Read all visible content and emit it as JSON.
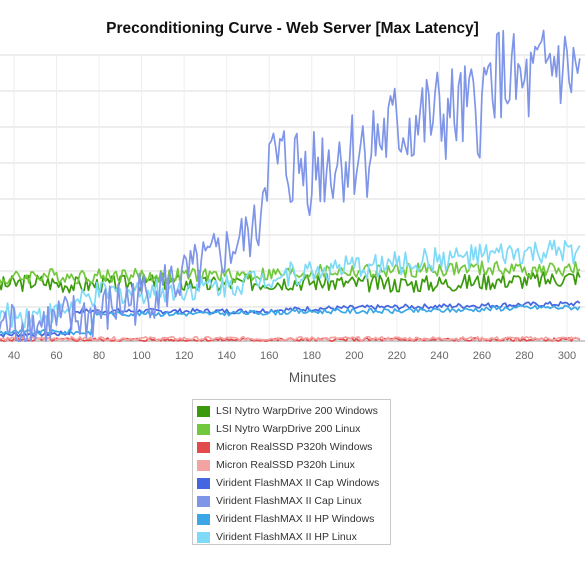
{
  "chart_data": {
    "type": "line",
    "title": "Preconditioning Curve - Web Server [Max Latency]",
    "xlabel": "Minutes",
    "ylabel": "",
    "x_ticks": [
      40,
      60,
      80,
      100,
      120,
      140,
      160,
      180,
      200,
      220,
      240,
      260,
      280,
      300
    ],
    "xlim": [
      30,
      306
    ],
    "grid": true,
    "legend_position": "bottom-center",
    "series": [
      {
        "name": "LSI Nytro WarpDrive 200 Windows",
        "color": "#3a9a0c",
        "points": [
          [
            30,
            44
          ],
          [
            50,
            48
          ],
          [
            70,
            45
          ],
          [
            90,
            46
          ],
          [
            110,
            48
          ],
          [
            130,
            45
          ],
          [
            150,
            47
          ],
          [
            170,
            48
          ],
          [
            190,
            47
          ],
          [
            210,
            46
          ],
          [
            230,
            46
          ],
          [
            250,
            47
          ],
          [
            270,
            49
          ],
          [
            290,
            49
          ],
          [
            306,
            52
          ]
        ]
      },
      {
        "name": "LSI Nytro WarpDrive 200 Linux",
        "color": "#72c83c",
        "points": [
          [
            30,
            48
          ],
          [
            50,
            53
          ],
          [
            70,
            52
          ],
          [
            90,
            53
          ],
          [
            110,
            52
          ],
          [
            130,
            53
          ],
          [
            150,
            53
          ],
          [
            170,
            54
          ],
          [
            190,
            56
          ],
          [
            210,
            56
          ],
          [
            230,
            57
          ],
          [
            250,
            58
          ],
          [
            270,
            58
          ],
          [
            290,
            57
          ],
          [
            306,
            58
          ]
        ]
      },
      {
        "name": "Micron RealSSD P320h Windows",
        "color": "#e24b4b",
        "points": [
          [
            30,
            1
          ],
          [
            60,
            1
          ],
          [
            90,
            1
          ],
          [
            120,
            1
          ],
          [
            150,
            1
          ],
          [
            180,
            1
          ],
          [
            210,
            1
          ],
          [
            240,
            1
          ],
          [
            270,
            1
          ],
          [
            306,
            1
          ]
        ]
      },
      {
        "name": "Micron RealSSD P320h Linux",
        "color": "#f4a3a3",
        "points": [
          [
            30,
            2
          ],
          [
            60,
            2
          ],
          [
            90,
            2
          ],
          [
            120,
            2
          ],
          [
            150,
            2
          ],
          [
            180,
            2
          ],
          [
            210,
            2
          ],
          [
            240,
            2
          ],
          [
            270,
            2
          ],
          [
            306,
            2
          ]
        ]
      },
      {
        "name": "Virident FlashMAX II Cap Windows",
        "color": "#4466e0",
        "points": [
          [
            30,
            5
          ],
          [
            66,
            6
          ],
          [
            68,
            24
          ],
          [
            90,
            24
          ],
          [
            120,
            24
          ],
          [
            150,
            24
          ],
          [
            180,
            26
          ],
          [
            210,
            27
          ],
          [
            240,
            28
          ],
          [
            270,
            29
          ],
          [
            306,
            30
          ]
        ]
      },
      {
        "name": "Virident FlashMAX II Cap Linux",
        "color": "#7f95e8",
        "points": [
          [
            30,
            12
          ],
          [
            60,
            14
          ],
          [
            80,
            22
          ],
          [
            100,
            36
          ],
          [
            120,
            50
          ],
          [
            140,
            72
          ],
          [
            155,
            90
          ],
          [
            158,
            140
          ],
          [
            165,
            140
          ],
          [
            180,
            140
          ],
          [
            200,
            150
          ],
          [
            220,
            170
          ],
          [
            240,
            180
          ],
          [
            260,
            185
          ],
          [
            265,
            220
          ],
          [
            280,
            200
          ],
          [
            295,
            225
          ],
          [
            300,
            215
          ],
          [
            306,
            215
          ]
        ]
      },
      {
        "name": "Virident FlashMAX II HP Windows",
        "color": "#3ba7e6",
        "points": [
          [
            30,
            7
          ],
          [
            76,
            7
          ],
          [
            78,
            22
          ],
          [
            100,
            22
          ],
          [
            130,
            22
          ],
          [
            160,
            23
          ],
          [
            190,
            24
          ],
          [
            220,
            24
          ],
          [
            250,
            25
          ],
          [
            280,
            27
          ],
          [
            306,
            27
          ]
        ]
      },
      {
        "name": "Virident FlashMAX II HP Linux",
        "color": "#7fdaf8",
        "points": [
          [
            30,
            20
          ],
          [
            60,
            22
          ],
          [
            80,
            38
          ],
          [
            100,
            40
          ],
          [
            120,
            42
          ],
          [
            140,
            45
          ],
          [
            160,
            52
          ],
          [
            180,
            56
          ],
          [
            200,
            59
          ],
          [
            220,
            62
          ],
          [
            240,
            66
          ],
          [
            260,
            68
          ],
          [
            280,
            70
          ],
          [
            306,
            72
          ]
        ]
      }
    ]
  }
}
